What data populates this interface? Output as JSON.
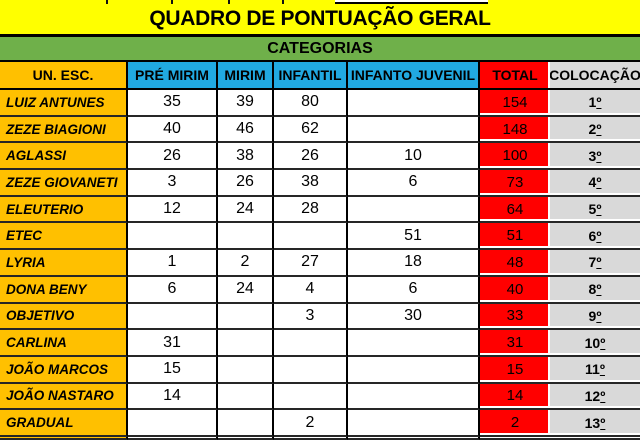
{
  "title": "QUADRO DE PONTUAÇÃO GERAL",
  "subtitle": "CATEGORIAS",
  "columns": [
    "UN. ESC.",
    "PRÉ MIRIM",
    "MIRIM",
    "INFANTIL",
    "INFANTO JUVENIL",
    "TOTAL",
    "COLOCAÇÃO"
  ],
  "rows": [
    {
      "name": "LUIZ ANTUNES",
      "scores": [
        "35",
        "39",
        "80",
        ""
      ],
      "total": "154",
      "place": "1º"
    },
    {
      "name": "ZEZE BIAGIONI",
      "scores": [
        "40",
        "46",
        "62",
        ""
      ],
      "total": "148",
      "place": "2º"
    },
    {
      "name": "AGLASSI",
      "scores": [
        "26",
        "38",
        "26",
        "10"
      ],
      "total": "100",
      "place": "3º"
    },
    {
      "name": "ZEZE GIOVANETI",
      "scores": [
        "3",
        "26",
        "38",
        "6"
      ],
      "total": "73",
      "place": "4º"
    },
    {
      "name": "ELEUTERIO",
      "scores": [
        "12",
        "24",
        "28",
        ""
      ],
      "total": "64",
      "place": "5º"
    },
    {
      "name": "ETEC",
      "scores": [
        "",
        "",
        "",
        "51"
      ],
      "total": "51",
      "place": "6º"
    },
    {
      "name": "LYRIA",
      "scores": [
        "1",
        "2",
        "27",
        "18"
      ],
      "total": "48",
      "place": "7º"
    },
    {
      "name": "DONA BENY",
      "scores": [
        "6",
        "24",
        "4",
        "6"
      ],
      "total": "40",
      "place": "8º"
    },
    {
      "name": "OBJETIVO",
      "scores": [
        "",
        "",
        "3",
        "30"
      ],
      "total": "33",
      "place": "9º"
    },
    {
      "name": "CARLINA",
      "scores": [
        "31",
        "",
        "",
        ""
      ],
      "total": "31",
      "place": "10º"
    },
    {
      "name": "JOÃO MARCOS",
      "scores": [
        "15",
        "",
        "",
        ""
      ],
      "total": "15",
      "place": "11º"
    },
    {
      "name": "JOÃO NASTARO",
      "scores": [
        "14",
        "",
        "",
        ""
      ],
      "total": "14",
      "place": "12º"
    },
    {
      "name": "GRADUAL",
      "scores": [
        "",
        "",
        "2",
        ""
      ],
      "total": "2",
      "place": "13º"
    }
  ],
  "colors": {
    "yellow": "#FFFF00",
    "green": "#6FB04A",
    "gold": "#FFC000",
    "blue": "#21A9E1",
    "red": "#FF0000",
    "gray": "#D9D9D9"
  }
}
